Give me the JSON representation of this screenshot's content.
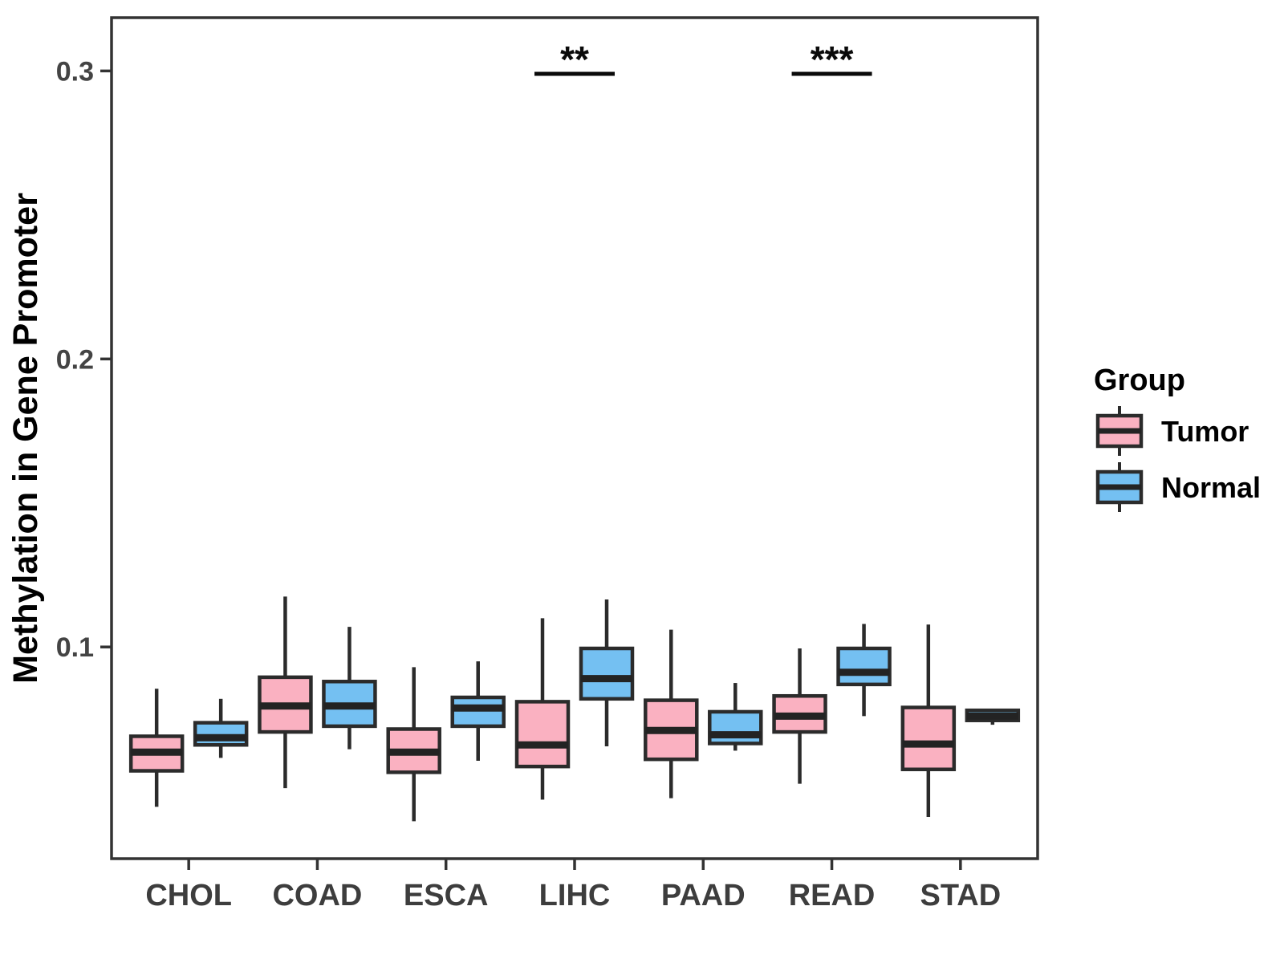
{
  "figure": {
    "background": "#FFFFFF"
  },
  "chart_data": {
    "type": "boxplot",
    "title": "",
    "xlabel": "",
    "ylabel": "Methylation in Gene Promoter",
    "categories": [
      "CHOL",
      "COAD",
      "ESCA",
      "LIHC",
      "PAAD",
      "READ",
      "STAD"
    ],
    "groups": [
      {
        "name": "Tumor",
        "fill": "#FAB1C1"
      },
      {
        "name": "Normal",
        "fill": "#74C0F2"
      }
    ],
    "series": [
      {
        "name": "Tumor",
        "stats": [
          {
            "category": "CHOL",
            "min": 0.0445,
            "q1": 0.057,
            "median": 0.0635,
            "q3": 0.069,
            "max": 0.0855
          },
          {
            "category": "COAD",
            "min": 0.051,
            "q1": 0.0705,
            "median": 0.0795,
            "q3": 0.0895,
            "max": 0.1175
          },
          {
            "category": "ESCA",
            "min": 0.0395,
            "q1": 0.0565,
            "median": 0.0635,
            "q3": 0.0715,
            "max": 0.093
          },
          {
            "category": "LIHC",
            "min": 0.047,
            "q1": 0.0585,
            "median": 0.066,
            "q3": 0.081,
            "max": 0.11
          },
          {
            "category": "PAAD",
            "min": 0.0475,
            "q1": 0.061,
            "median": 0.071,
            "q3": 0.0815,
            "max": 0.106
          },
          {
            "category": "READ",
            "min": 0.0525,
            "q1": 0.0705,
            "median": 0.076,
            "q3": 0.083,
            "max": 0.0995
          },
          {
            "category": "STAD",
            "min": 0.041,
            "q1": 0.0575,
            "median": 0.0663,
            "q3": 0.079,
            "max": 0.1078
          }
        ]
      },
      {
        "name": "Normal",
        "stats": [
          {
            "category": "CHOL",
            "min": 0.0615,
            "q1": 0.066,
            "median": 0.0685,
            "q3": 0.0737,
            "max": 0.082
          },
          {
            "category": "COAD",
            "min": 0.0645,
            "q1": 0.0725,
            "median": 0.0795,
            "q3": 0.088,
            "max": 0.107
          },
          {
            "category": "ESCA",
            "min": 0.0605,
            "q1": 0.0725,
            "median": 0.0788,
            "q3": 0.0825,
            "max": 0.095
          },
          {
            "category": "LIHC",
            "min": 0.0655,
            "q1": 0.082,
            "median": 0.089,
            "q3": 0.0995,
            "max": 0.1165
          },
          {
            "category": "PAAD",
            "min": 0.064,
            "q1": 0.0665,
            "median": 0.0695,
            "q3": 0.0775,
            "max": 0.0875
          },
          {
            "category": "READ",
            "min": 0.076,
            "q1": 0.087,
            "median": 0.0912,
            "q3": 0.0995,
            "max": 0.108
          },
          {
            "category": "STAD",
            "min": 0.073,
            "q1": 0.0745,
            "median": 0.076,
            "q3": 0.078,
            "max": 0.0786
          }
        ]
      }
    ],
    "yticks": [
      0.1,
      0.2,
      0.3
    ],
    "ytick_labels": [
      "0.1",
      "0.2",
      "0.3"
    ],
    "ylim": [
      0.0265,
      0.3185
    ],
    "grid": false,
    "legend": {
      "title": "Group",
      "position": "right"
    },
    "significance": [
      {
        "category": "LIHC",
        "label": "**",
        "y": 0.299
      },
      {
        "category": "READ",
        "label": "***",
        "y": 0.299
      }
    ],
    "colors": {
      "panel_border": "#333333",
      "box_stroke": "#2B2B2B",
      "median_stroke": "#232323",
      "tick_stroke": "#333333",
      "tick_text": "#444444",
      "title_text": "#000000",
      "sig_text": "#0A0A0A"
    }
  }
}
